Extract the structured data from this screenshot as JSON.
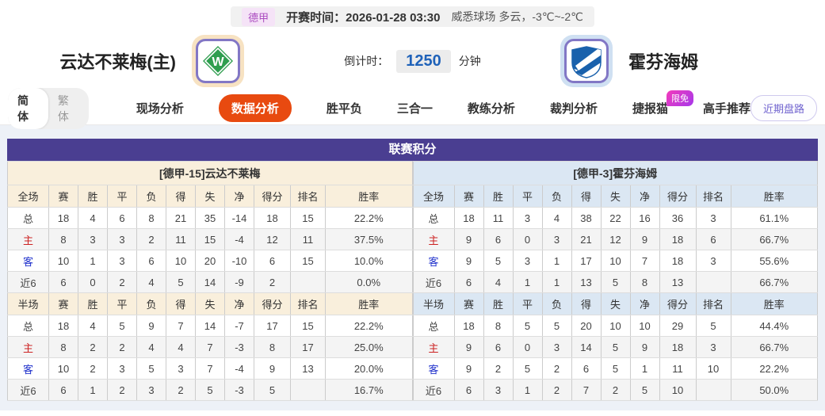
{
  "match_info": {
    "league_badge": "德甲",
    "kickoff_label": "开赛时间：",
    "kickoff_time": "2026-01-28 03:30",
    "venue_weather": "威悉球场  多云，-3℃~-2℃",
    "countdown_label": "倒计时：",
    "countdown_value": "1250",
    "countdown_unit": "分钟"
  },
  "teams": {
    "home_name": "云达不莱梅(主)",
    "away_name": "霍芬海姆",
    "home_logo_color": "#2f9e4f",
    "away_logo_color": "#1961ac"
  },
  "nav": {
    "lang": {
      "simplified": "简体",
      "traditional": "繁体"
    },
    "tabs": [
      "现场分析",
      "数据分析",
      "胜平负",
      "三合一",
      "教练分析",
      "裁判分析",
      "捷报猫",
      "高手推荐"
    ],
    "active_tab": "数据分析",
    "free_badge": "限免",
    "recent_trend_button": "近期盘路"
  },
  "league_points": {
    "title": "联赛积分",
    "columns_full": [
      "全场",
      "赛",
      "胜",
      "平",
      "负",
      "得",
      "失",
      "净",
      "得分",
      "排名",
      "胜率"
    ],
    "columns_half": [
      "半场",
      "赛",
      "胜",
      "平",
      "负",
      "得",
      "失",
      "净",
      "得分",
      "排名",
      "胜率"
    ],
    "colors": {
      "header_purple": "#4a3e91",
      "home_section_bg": "#f9efdc",
      "away_section_bg": "#dbe7f3",
      "home_row_label_red": "#cc2222",
      "away_row_label_blue": "#2233cc",
      "active_tab_orange": "#e84a10"
    },
    "home": {
      "subtitle": "[德甲-15]云达不莱梅",
      "full_rows": [
        [
          "总",
          "18",
          "4",
          "6",
          "8",
          "21",
          "35",
          "-14",
          "18",
          "15",
          "22.2%"
        ],
        [
          "主",
          "8",
          "3",
          "3",
          "2",
          "11",
          "15",
          "-4",
          "12",
          "11",
          "37.5%"
        ],
        [
          "客",
          "10",
          "1",
          "3",
          "6",
          "10",
          "20",
          "-10",
          "6",
          "15",
          "10.0%"
        ],
        [
          "近6",
          "6",
          "0",
          "2",
          "4",
          "5",
          "14",
          "-9",
          "2",
          "",
          "0.0%"
        ]
      ],
      "half_rows": [
        [
          "总",
          "18",
          "4",
          "5",
          "9",
          "7",
          "14",
          "-7",
          "17",
          "15",
          "22.2%"
        ],
        [
          "主",
          "8",
          "2",
          "2",
          "4",
          "4",
          "7",
          "-3",
          "8",
          "17",
          "25.0%"
        ],
        [
          "客",
          "10",
          "2",
          "3",
          "5",
          "3",
          "7",
          "-4",
          "9",
          "13",
          "20.0%"
        ],
        [
          "近6",
          "6",
          "1",
          "2",
          "3",
          "2",
          "5",
          "-3",
          "5",
          "",
          "16.7%"
        ]
      ]
    },
    "away": {
      "subtitle": "[德甲-3]霍芬海姆",
      "full_rows": [
        [
          "总",
          "18",
          "11",
          "3",
          "4",
          "38",
          "22",
          "16",
          "36",
          "3",
          "61.1%"
        ],
        [
          "主",
          "9",
          "6",
          "0",
          "3",
          "21",
          "12",
          "9",
          "18",
          "6",
          "66.7%"
        ],
        [
          "客",
          "9",
          "5",
          "3",
          "1",
          "17",
          "10",
          "7",
          "18",
          "3",
          "55.6%"
        ],
        [
          "近6",
          "6",
          "4",
          "1",
          "1",
          "13",
          "5",
          "8",
          "13",
          "",
          "66.7%"
        ]
      ],
      "half_rows": [
        [
          "总",
          "18",
          "8",
          "5",
          "5",
          "20",
          "10",
          "10",
          "29",
          "5",
          "44.4%"
        ],
        [
          "主",
          "9",
          "6",
          "0",
          "3",
          "14",
          "5",
          "9",
          "18",
          "3",
          "66.7%"
        ],
        [
          "客",
          "9",
          "2",
          "5",
          "2",
          "6",
          "5",
          "1",
          "11",
          "10",
          "22.2%"
        ],
        [
          "近6",
          "6",
          "3",
          "1",
          "2",
          "7",
          "2",
          "5",
          "10",
          "",
          "50.0%"
        ]
      ]
    }
  }
}
